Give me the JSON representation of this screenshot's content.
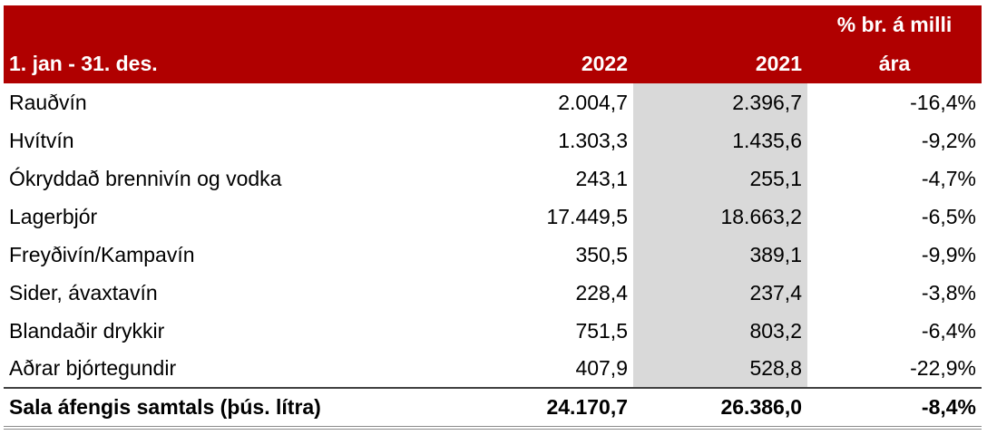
{
  "table": {
    "header_top": "% br. á milli",
    "header": [
      "1. jan - 31. des.",
      "2022",
      "2021",
      "ára"
    ],
    "rows": [
      [
        "Rauðvín",
        "2.004,7",
        "2.396,7",
        "-16,4%"
      ],
      [
        "Hvítvín",
        "1.303,3",
        "1.435,6",
        "-9,2%"
      ],
      [
        "Ókryddað brennivín og vodka",
        "243,1",
        "255,1",
        "-4,7%"
      ],
      [
        "Lagerbjór",
        "17.449,5",
        "18.663,2",
        "-6,5%"
      ],
      [
        "Freyðivín/Kampavín",
        "350,5",
        "389,1",
        "-9,9%"
      ],
      [
        "Sider, ávaxtavín",
        "228,4",
        "237,4",
        "-3,8%"
      ],
      [
        "Blandaðir drykkir",
        "751,5",
        "803,2",
        "-6,4%"
      ],
      [
        "Aðrar bjórtegundir",
        "407,9",
        "528,8",
        "-22,9%"
      ]
    ],
    "total": [
      "Sala áfengis samtals (þús. lítra)",
      "24.170,7",
      "26.386,0",
      "-8,4%"
    ]
  }
}
